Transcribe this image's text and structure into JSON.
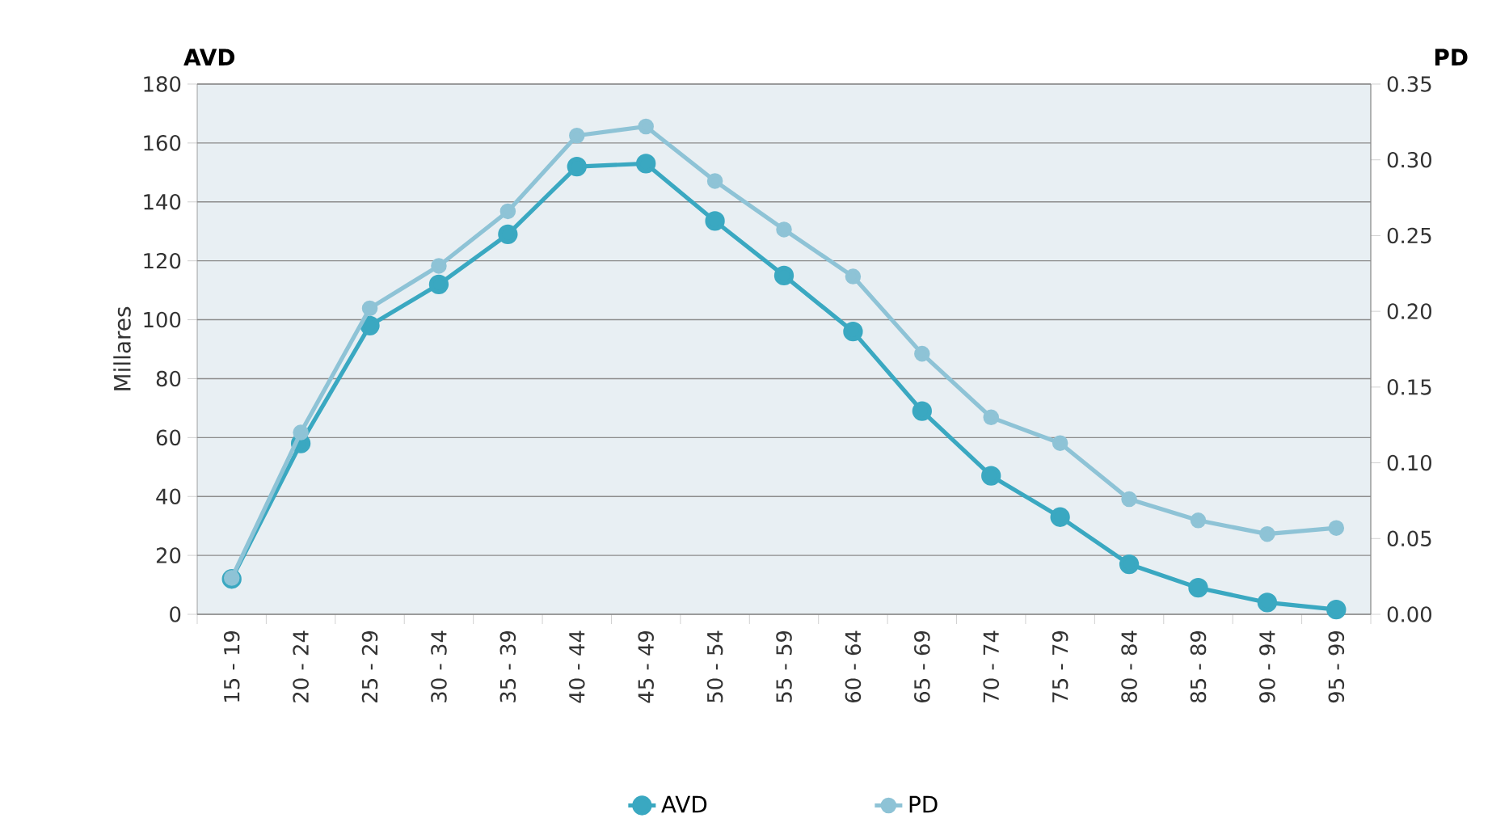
{
  "chart_data": {
    "type": "line",
    "categories": [
      "15 - 19",
      "20 - 24",
      "25 - 29",
      "30 - 34",
      "35 - 39",
      "40 - 44",
      "45 - 49",
      "50 - 54",
      "55 - 59",
      "60 - 64",
      "65 - 69",
      "70 - 74",
      "75 - 79",
      "80 - 84",
      "85 - 89",
      "90 - 94",
      "95 - 99"
    ],
    "series": [
      {
        "name": "AVD",
        "color": "#3aa8c1",
        "values": [
          12,
          58,
          98,
          112,
          129,
          152,
          153,
          133.5,
          115,
          96,
          69,
          47,
          33,
          17,
          9,
          4,
          1.6
        ]
      },
      {
        "name": "PD",
        "color": "#8ec3d6",
        "axis": "y2",
        "values": [
          0.024,
          0.12,
          0.202,
          0.23,
          0.266,
          0.316,
          0.322,
          0.286,
          0.254,
          0.223,
          0.172,
          0.13,
          0.113,
          0.076,
          0.062,
          0.053,
          0.057
        ]
      }
    ],
    "ylabel": "Millares",
    "y2label": "PD",
    "annotations": [
      "AVD"
    ],
    "ylim": [
      0,
      180
    ],
    "yticks": [
      0,
      20,
      40,
      60,
      80,
      100,
      120,
      140,
      160,
      180
    ],
    "y2lim": [
      0,
      0.35
    ],
    "y2ticks": [
      {
        "value": 0,
        "label": "0.00"
      },
      {
        "value": 0.05,
        "label": "0.05"
      },
      {
        "value": 0.1,
        "label": "0.10"
      },
      {
        "value": 0.15,
        "label": "0.15"
      },
      {
        "value": 0.2,
        "label": "0.20"
      },
      {
        "value": 0.25,
        "label": "0.25"
      },
      {
        "value": 0.3,
        "label": "0.30"
      },
      {
        "value": 0.35,
        "label": "0.35"
      }
    ],
    "grid": "y",
    "legend": "bottom",
    "marker": "circle",
    "line_style": "solid"
  }
}
